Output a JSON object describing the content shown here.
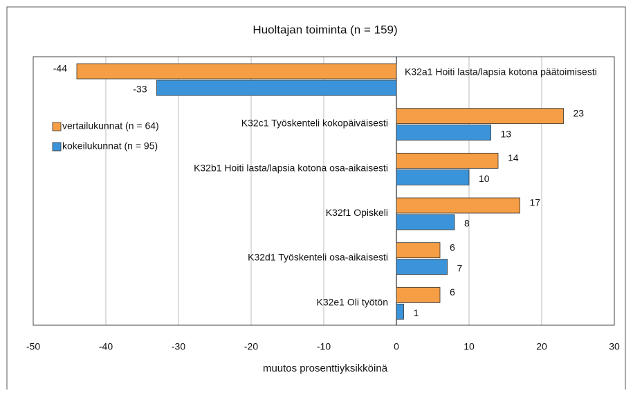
{
  "chart_data": {
    "type": "bar",
    "orientation": "horizontal",
    "title": "Huoltajan toiminta (n = 159)",
    "x_label": "muutos prosenttiyksikköinä",
    "categories": [
      "K32a1 Hoiti lasta/lapsia kotona päätoimisesti",
      "K32c1 Työskenteli kokopäiväisesti",
      "K32b1 Hoiti lasta/lapsia kotona osa-aikaisesti",
      "K32f1 Opiskeli",
      "K32d1 Työskenteli osa-aikaisesti",
      "K32e1 Oli työtön"
    ],
    "series": [
      {
        "name": "vertailukunnat (n = 64)",
        "color": "#f59e45",
        "values": [
          -44,
          23,
          14,
          17,
          6,
          6
        ]
      },
      {
        "name": "kokeilukunnat (n = 95)",
        "color": "#3b94d9",
        "values": [
          -33,
          13,
          10,
          8,
          7,
          1
        ]
      }
    ],
    "xlim": [
      -50,
      30
    ],
    "xticks": [
      -50,
      -40,
      -30,
      -20,
      -10,
      0,
      10,
      20,
      30
    ],
    "grid": true,
    "legend": "left"
  }
}
